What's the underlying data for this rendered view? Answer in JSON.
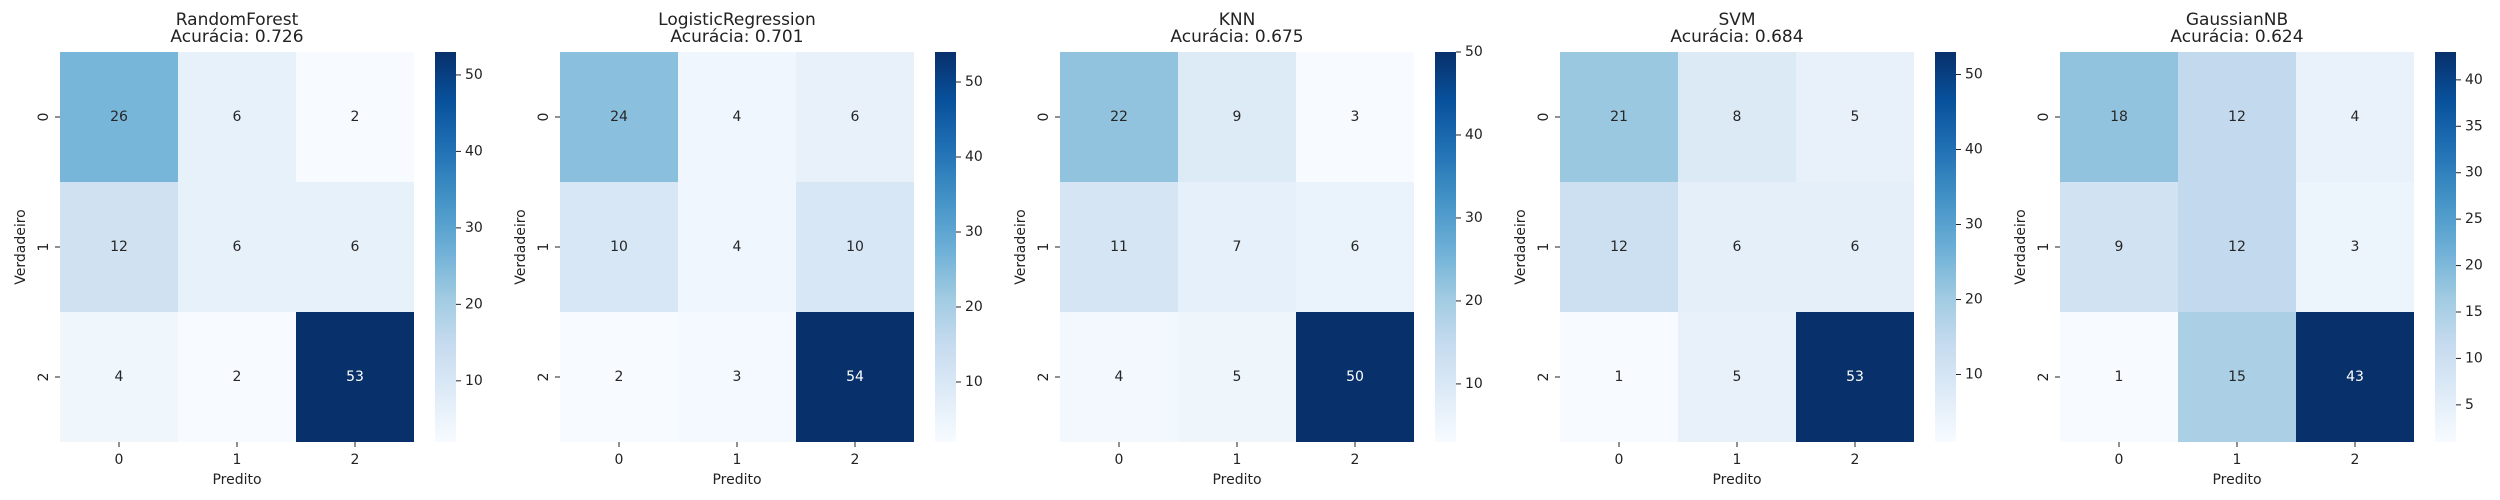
{
  "chart_data": [
    {
      "type": "heatmap",
      "title": "RandomForest",
      "subtitle": "Acurácia: 0.726",
      "xlabel": "Predito",
      "ylabel": "Verdadeiro",
      "x_categories": [
        "0",
        "1",
        "2"
      ],
      "y_categories": [
        "0",
        "1",
        "2"
      ],
      "matrix": [
        [
          26,
          6,
          2
        ],
        [
          12,
          6,
          6
        ],
        [
          4,
          2,
          53
        ]
      ],
      "colormap": "Blues",
      "colorbar": {
        "range": [
          2,
          53
        ],
        "ticks": [
          10,
          20,
          30,
          40,
          50
        ]
      }
    },
    {
      "type": "heatmap",
      "title": "LogisticRegression",
      "subtitle": "Acurácia: 0.701",
      "xlabel": "Predito",
      "ylabel": "Verdadeiro",
      "x_categories": [
        "0",
        "1",
        "2"
      ],
      "y_categories": [
        "0",
        "1",
        "2"
      ],
      "matrix": [
        [
          24,
          4,
          6
        ],
        [
          10,
          4,
          10
        ],
        [
          2,
          3,
          54
        ]
      ],
      "colormap": "Blues",
      "colorbar": {
        "range": [
          2,
          54
        ],
        "ticks": [
          10,
          20,
          30,
          40,
          50
        ]
      }
    },
    {
      "type": "heatmap",
      "title": "KNN",
      "subtitle": "Acurácia: 0.675",
      "xlabel": "Predito",
      "ylabel": "Verdadeiro",
      "x_categories": [
        "0",
        "1",
        "2"
      ],
      "y_categories": [
        "0",
        "1",
        "2"
      ],
      "matrix": [
        [
          22,
          9,
          3
        ],
        [
          11,
          7,
          6
        ],
        [
          4,
          5,
          50
        ]
      ],
      "colormap": "Blues",
      "colorbar": {
        "range": [
          3,
          50
        ],
        "ticks": [
          10,
          20,
          30,
          40,
          50
        ]
      }
    },
    {
      "type": "heatmap",
      "title": "SVM",
      "subtitle": "Acurácia: 0.684",
      "xlabel": "Predito",
      "ylabel": "Verdadeiro",
      "x_categories": [
        "0",
        "1",
        "2"
      ],
      "y_categories": [
        "0",
        "1",
        "2"
      ],
      "matrix": [
        [
          21,
          8,
          5
        ],
        [
          12,
          6,
          6
        ],
        [
          1,
          5,
          53
        ]
      ],
      "colormap": "Blues",
      "colorbar": {
        "range": [
          1,
          53
        ],
        "ticks": [
          10,
          20,
          30,
          40,
          50
        ]
      }
    },
    {
      "type": "heatmap",
      "title": "GaussianNB",
      "subtitle": "Acurácia: 0.624",
      "xlabel": "Predito",
      "ylabel": "Verdadeiro",
      "x_categories": [
        "0",
        "1",
        "2"
      ],
      "y_categories": [
        "0",
        "1",
        "2"
      ],
      "matrix": [
        [
          18,
          12,
          4
        ],
        [
          9,
          12,
          3
        ],
        [
          1,
          15,
          43
        ]
      ],
      "colormap": "Blues",
      "colorbar": {
        "range": [
          1,
          43
        ],
        "ticks": [
          5,
          10,
          15,
          20,
          25,
          30,
          35,
          40
        ]
      }
    }
  ]
}
